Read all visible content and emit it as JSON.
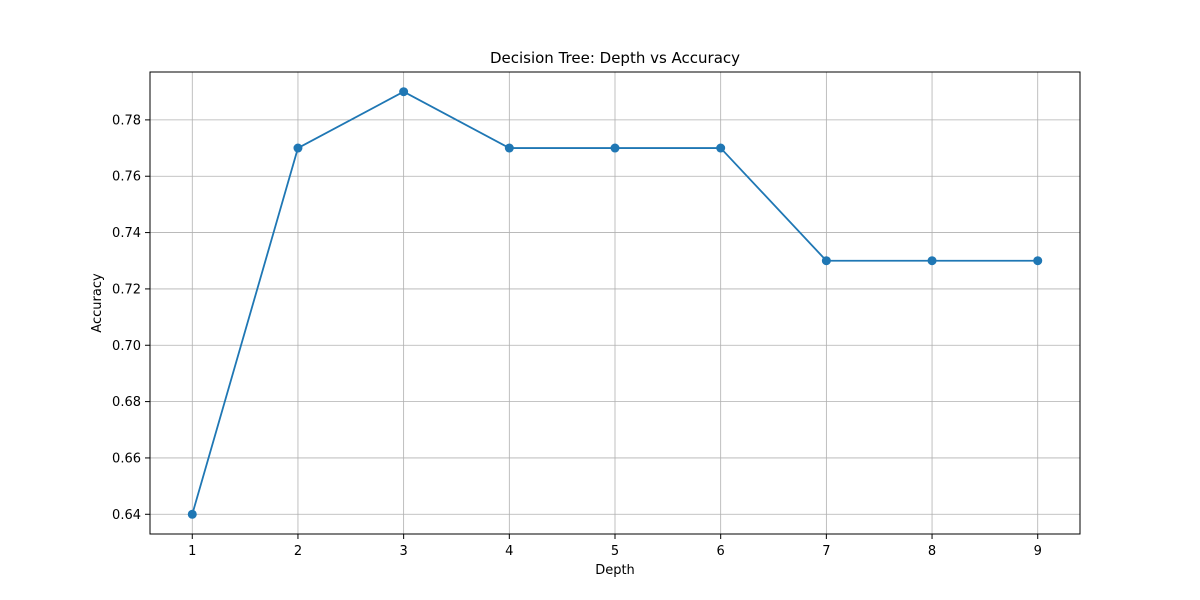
{
  "chart_data": {
    "type": "line",
    "title": "Decision Tree: Depth vs Accuracy",
    "xlabel": "Depth",
    "ylabel": "Accuracy",
    "x": [
      1,
      2,
      3,
      4,
      5,
      6,
      7,
      8,
      9
    ],
    "xticks": [
      "1",
      "2",
      "3",
      "4",
      "5",
      "6",
      "7",
      "8",
      "9"
    ],
    "yticks": [
      "0.64",
      "0.66",
      "0.68",
      "0.70",
      "0.72",
      "0.74",
      "0.76",
      "0.78"
    ],
    "xlim": [
      0.6,
      9.4
    ],
    "ylim": [
      0.633,
      0.797
    ],
    "grid": true,
    "marker": "circle",
    "series": [
      {
        "values": [
          0.64,
          0.77,
          0.79,
          0.77,
          0.77,
          0.77,
          0.73,
          0.73,
          0.73
        ],
        "color": "#1f77b4"
      }
    ]
  }
}
